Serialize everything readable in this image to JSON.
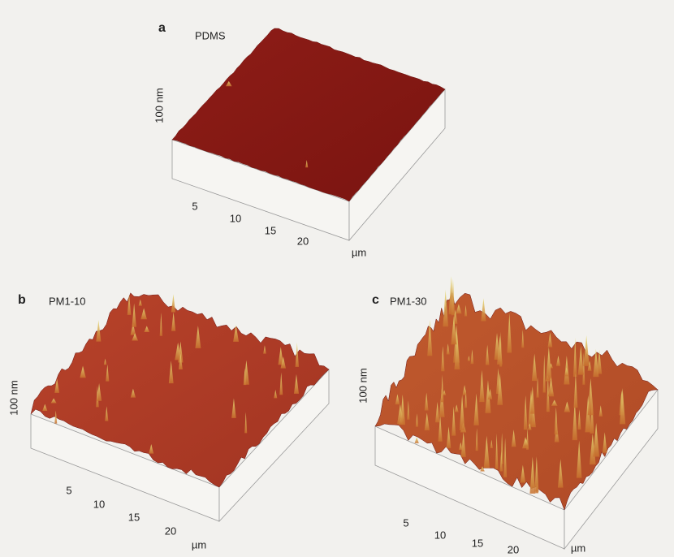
{
  "panels": [
    {
      "letter": "a",
      "title": "PDMS",
      "z_label": "100 nm",
      "ticks": [
        "5",
        "10",
        "15",
        "20"
      ],
      "unit": "µm"
    },
    {
      "letter": "b",
      "title": "PM1-10",
      "z_label": "100 nm",
      "ticks": [
        "5",
        "10",
        "15",
        "20"
      ],
      "unit": "µm"
    },
    {
      "letter": "c",
      "title": "PM1-30",
      "z_label": "100 nm",
      "ticks": [
        "5",
        "10",
        "15",
        "20"
      ],
      "unit": "µm"
    }
  ]
}
